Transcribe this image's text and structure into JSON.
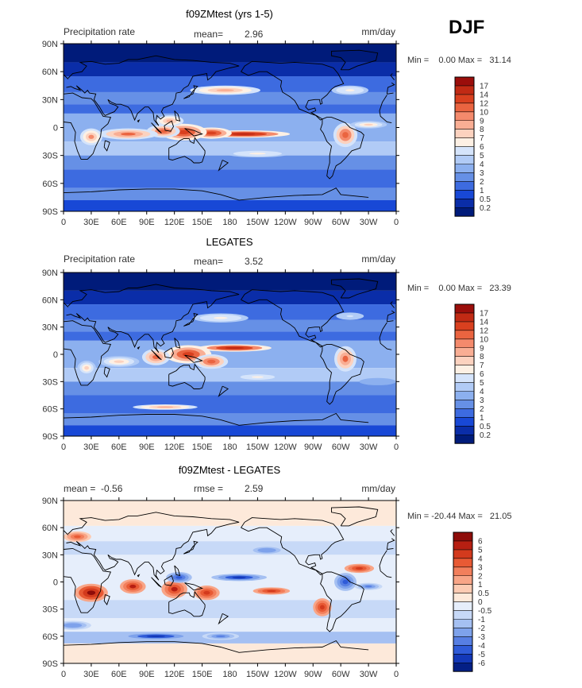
{
  "figure": {
    "season": "DJF",
    "lat_ticks": [
      "90N",
      "60N",
      "30N",
      "0",
      "30S",
      "60S",
      "90S"
    ],
    "lon_ticks": [
      "0",
      "30E",
      "60E",
      "90E",
      "120E",
      "150E",
      "180",
      "150W",
      "120W",
      "90W",
      "60W",
      "30W",
      "0"
    ]
  },
  "chart_data": [
    {
      "type": "heatmap",
      "title": "f09ZMtest (yrs 1-5)",
      "left_label": "Precipitation rate",
      "stat_label": "mean=",
      "stat_value": "2.96",
      "units": "mm/day",
      "minmax_text": "Min =    0.00 Max =   31.14",
      "min": 0.0,
      "max": 31.14,
      "colorbar_levels": [
        "17",
        "14",
        "12",
        "10",
        "9",
        "8",
        "7",
        "6",
        "5",
        "4",
        "3",
        "2",
        "1",
        "0.5",
        "0.2"
      ],
      "colorbar_colors": [
        "#9b0e0b",
        "#c12a14",
        "#d9401f",
        "#ea6440",
        "#f48a6c",
        "#f9ae94",
        "#fcd2bf",
        "#fdf0e4",
        "#d5e4fb",
        "#b1cbf6",
        "#8cb0ef",
        "#6690e6",
        "#3d6be0",
        "#1848d6",
        "#0a2da8",
        "#001b7a"
      ],
      "legend_position": "right"
    },
    {
      "type": "heatmap",
      "title": "LEGATES",
      "left_label": "Precipitation rate",
      "stat_label": "mean=",
      "stat_value": "3.52",
      "units": "mm/day",
      "minmax_text": "Min =    0.00 Max =   23.39",
      "min": 0.0,
      "max": 23.39,
      "colorbar_levels": [
        "17",
        "14",
        "12",
        "10",
        "9",
        "8",
        "7",
        "6",
        "5",
        "4",
        "3",
        "2",
        "1",
        "0.5",
        "0.2"
      ],
      "colorbar_colors": [
        "#9b0e0b",
        "#c12a14",
        "#d9401f",
        "#ea6440",
        "#f48a6c",
        "#f9ae94",
        "#fcd2bf",
        "#fdf0e4",
        "#d5e4fb",
        "#b1cbf6",
        "#8cb0ef",
        "#6690e6",
        "#3d6be0",
        "#1848d6",
        "#0a2da8",
        "#001b7a"
      ],
      "legend_position": "right"
    },
    {
      "type": "heatmap",
      "title": "f09ZMtest - LEGATES",
      "left_label": "mean =  -0.56",
      "stat_label": "rmse =",
      "stat_value": "2.59",
      "units": "mm/day",
      "minmax_text": "Min = -20.44 Max =   21.05",
      "min": -20.44,
      "max": 21.05,
      "colorbar_levels": [
        "6",
        "5",
        "4",
        "3",
        "2",
        "1",
        "0.5",
        "0",
        "-0.5",
        "-1",
        "-2",
        "-3",
        "-4",
        "-5",
        "-6"
      ],
      "colorbar_colors": [
        "#8e0c09",
        "#b71f12",
        "#d33a1d",
        "#e85a34",
        "#f27f5c",
        "#f8a587",
        "#fccbb3",
        "#fde9da",
        "#e6eefb",
        "#c7d9f7",
        "#a5c0f2",
        "#7ea2eb",
        "#577fe3",
        "#2f5bd8",
        "#1338b8",
        "#041f85"
      ],
      "legend_position": "right"
    }
  ]
}
